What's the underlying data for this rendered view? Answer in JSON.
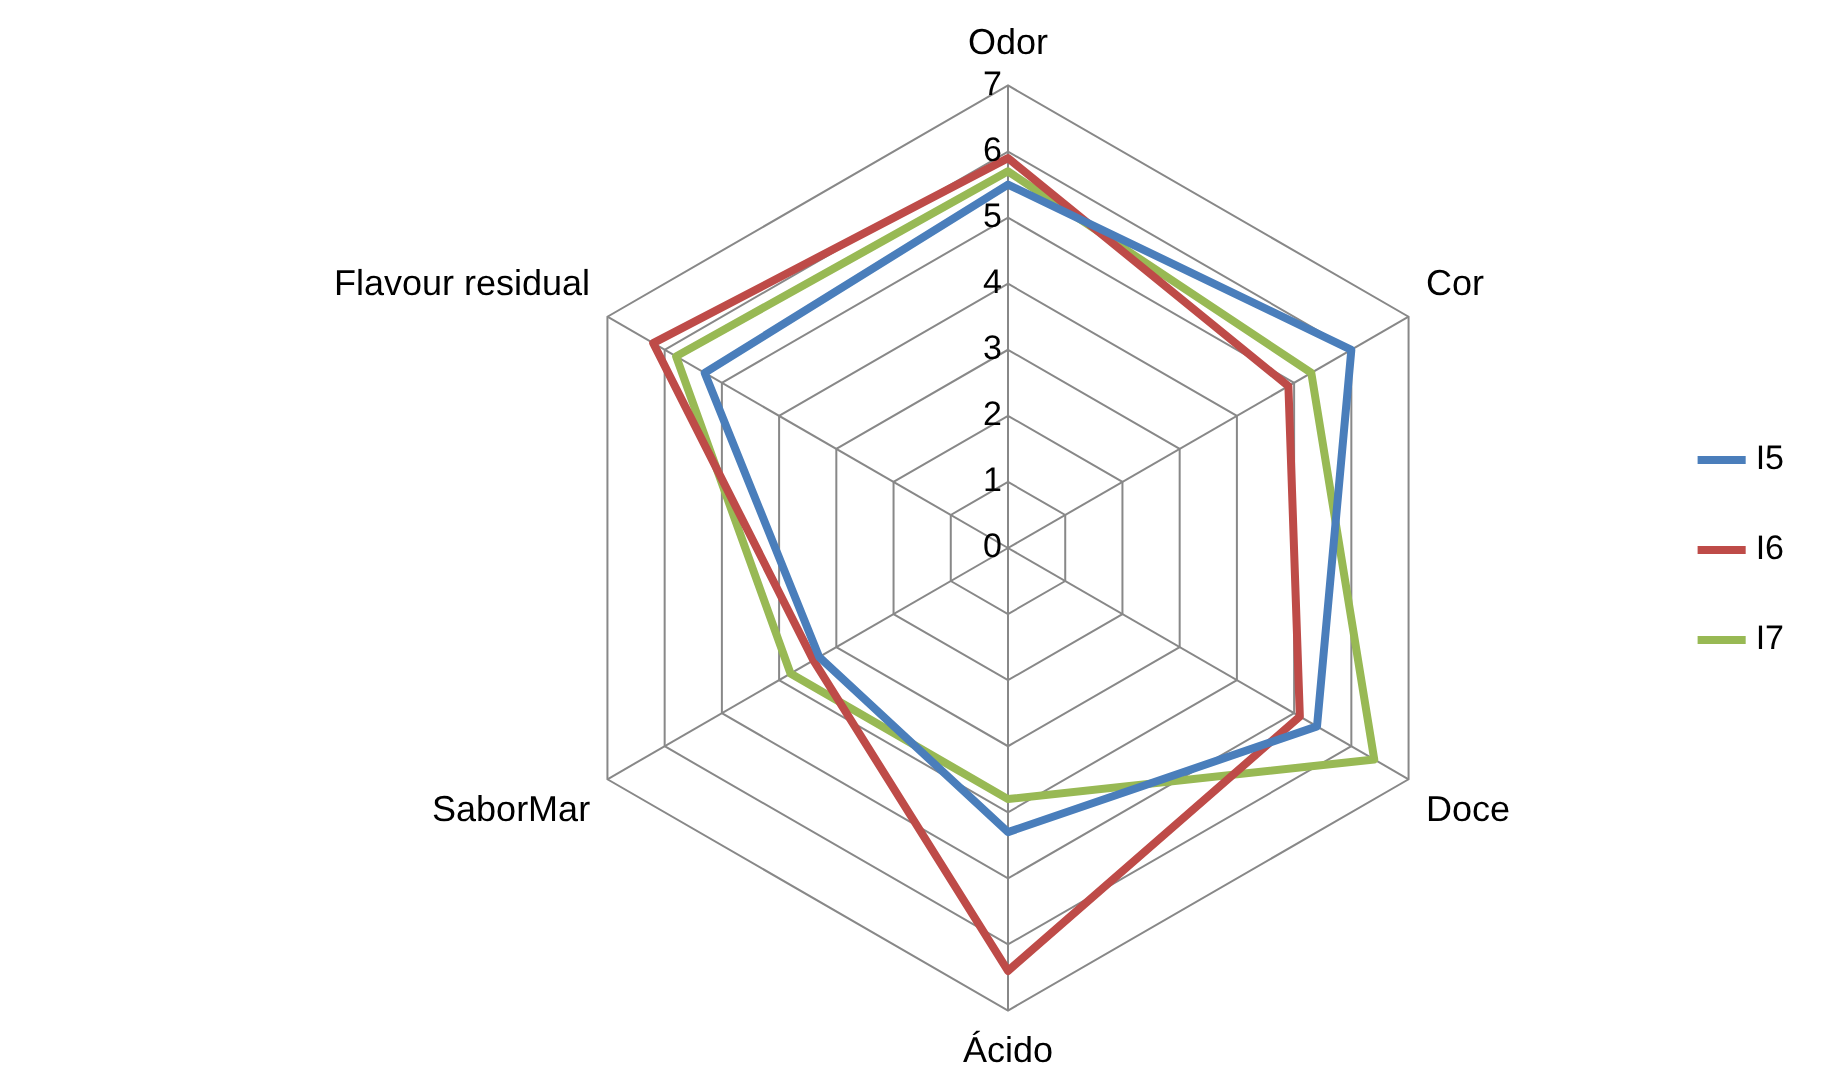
{
  "chart_data": {
    "type": "radar",
    "categories": [
      "Odor",
      "Cor",
      "Doce",
      "Ácido",
      "SaborMar",
      "Flavour residual"
    ],
    "series": [
      {
        "name": "I5",
        "color": "#4a7ebb",
        "values": [
          5.5,
          6.0,
          5.4,
          4.3,
          3.3,
          5.3
        ]
      },
      {
        "name": "I6",
        "color": "#be4b48",
        "values": [
          5.9,
          4.9,
          5.1,
          6.4,
          3.4,
          6.2
        ]
      },
      {
        "name": "I7",
        "color": "#98b954",
        "values": [
          5.7,
          5.3,
          6.4,
          3.8,
          3.8,
          5.8
        ]
      }
    ],
    "ylim": [
      0,
      7
    ],
    "yticks": [
      0,
      1,
      2,
      3,
      4,
      5,
      6,
      7
    ],
    "grid": true,
    "legend": "right",
    "marker": "none",
    "line_style": "solid"
  }
}
